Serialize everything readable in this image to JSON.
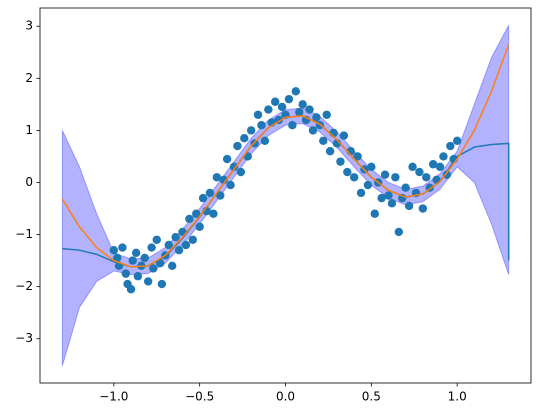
{
  "chart_data": {
    "type": "scatter",
    "xlim": [
      -1.43,
      1.43
    ],
    "ylim": [
      -3.85,
      3.35
    ],
    "xticks": [
      {
        "value": -1.0,
        "label": "−1.0"
      },
      {
        "value": -0.5,
        "label": "−0.5"
      },
      {
        "value": 0.0,
        "label": "0.0"
      },
      {
        "value": 0.5,
        "label": "0.5"
      },
      {
        "value": 1.0,
        "label": "1.0"
      }
    ],
    "yticks": [
      {
        "value": -3,
        "label": "−3"
      },
      {
        "value": -2,
        "label": "−2"
      },
      {
        "value": -1,
        "label": "−1"
      },
      0,
      1,
      2,
      3
    ],
    "band": {
      "color": "blue",
      "x": [
        -1.3,
        -1.2,
        -1.1,
        -1.0,
        -0.9,
        -0.8,
        -0.7,
        -0.6,
        -0.5,
        -0.4,
        -0.3,
        -0.2,
        -0.1,
        0.0,
        0.1,
        0.2,
        0.3,
        0.4,
        0.5,
        0.6,
        0.7,
        0.8,
        0.9,
        1.0,
        1.1,
        1.2,
        1.3
      ],
      "upper": [
        1.0,
        0.3,
        -0.6,
        -1.35,
        -1.47,
        -1.45,
        -1.25,
        -0.9,
        -0.5,
        -0.05,
        0.4,
        0.85,
        1.2,
        1.4,
        1.43,
        1.27,
        0.97,
        0.6,
        0.25,
        0.0,
        -0.13,
        -0.07,
        0.17,
        0.6,
        1.5,
        2.4,
        3.02
      ],
      "lower": [
        -3.52,
        -2.4,
        -1.9,
        -1.7,
        -1.77,
        -1.75,
        -1.55,
        -1.2,
        -0.8,
        -0.35,
        0.1,
        0.55,
        0.9,
        1.1,
        1.13,
        0.97,
        0.67,
        0.3,
        -0.05,
        -0.3,
        -0.43,
        -0.37,
        -0.13,
        0.3,
        0.0,
        -0.8,
        -1.77
      ]
    },
    "series": [
      {
        "type": "line",
        "color": "#1f77b4",
        "x": [
          -1.3,
          -1.2,
          -1.1,
          -1.0,
          -0.9,
          -0.8,
          -0.7,
          -0.6,
          -0.5,
          -0.4,
          -0.3,
          -0.2,
          -0.1,
          0.0,
          0.1,
          0.2,
          0.3,
          0.4,
          0.5,
          0.6,
          0.7,
          0.8,
          0.9,
          1.0,
          1.1,
          1.2,
          1.3,
          1.3
        ],
        "values": [
          -1.27,
          -1.3,
          -1.38,
          -1.52,
          -1.62,
          -1.6,
          -1.42,
          -1.07,
          -0.66,
          -0.2,
          0.25,
          0.7,
          1.05,
          1.25,
          1.28,
          1.12,
          0.82,
          0.45,
          0.1,
          -0.15,
          -0.28,
          -0.22,
          0.02,
          0.5,
          0.68,
          0.73,
          0.75,
          -1.5
        ]
      },
      {
        "type": "line",
        "color": "#ff7f0e",
        "x": [
          -1.3,
          -1.2,
          -1.1,
          -1.0,
          -0.9,
          -0.8,
          -0.7,
          -0.6,
          -0.5,
          -0.4,
          -0.3,
          -0.2,
          -0.1,
          0.0,
          0.1,
          0.2,
          0.3,
          0.4,
          0.5,
          0.6,
          0.7,
          0.8,
          0.9,
          1.0,
          1.1,
          1.2,
          1.3
        ],
        "values": [
          -0.32,
          -0.85,
          -1.25,
          -1.5,
          -1.62,
          -1.6,
          -1.4,
          -1.05,
          -0.65,
          -0.2,
          0.25,
          0.7,
          1.05,
          1.25,
          1.28,
          1.12,
          0.82,
          0.45,
          0.1,
          -0.15,
          -0.28,
          -0.22,
          0.02,
          0.45,
          1.0,
          1.75,
          2.65
        ]
      },
      {
        "type": "scatter",
        "color": "#1f77b4",
        "x": [
          -1.0,
          -0.98,
          -0.97,
          -0.95,
          -0.93,
          -0.92,
          -0.9,
          -0.89,
          -0.87,
          -0.86,
          -0.84,
          -0.82,
          -0.8,
          -0.78,
          -0.77,
          -0.75,
          -0.73,
          -0.72,
          -0.7,
          -0.68,
          -0.66,
          -0.64,
          -0.62,
          -0.6,
          -0.58,
          -0.56,
          -0.54,
          -0.52,
          -0.5,
          -0.48,
          -0.46,
          -0.44,
          -0.42,
          -0.4,
          -0.38,
          -0.36,
          -0.34,
          -0.32,
          -0.3,
          -0.28,
          -0.26,
          -0.24,
          -0.22,
          -0.2,
          -0.18,
          -0.16,
          -0.14,
          -0.12,
          -0.1,
          -0.08,
          -0.06,
          -0.04,
          -0.02,
          0.0,
          0.02,
          0.04,
          0.06,
          0.08,
          0.1,
          0.12,
          0.14,
          0.16,
          0.18,
          0.2,
          0.22,
          0.24,
          0.26,
          0.28,
          0.3,
          0.32,
          0.34,
          0.36,
          0.38,
          0.4,
          0.42,
          0.44,
          0.46,
          0.48,
          0.5,
          0.52,
          0.54,
          0.56,
          0.58,
          0.6,
          0.62,
          0.64,
          0.66,
          0.68,
          0.7,
          0.72,
          0.74,
          0.76,
          0.78,
          0.8,
          0.82,
          0.84,
          0.86,
          0.88,
          0.9,
          0.92,
          0.94,
          0.96,
          0.98,
          1.0
        ],
        "values": [
          -1.3,
          -1.45,
          -1.6,
          -1.25,
          -1.75,
          -1.95,
          -2.05,
          -1.5,
          -1.35,
          -1.8,
          -1.6,
          -1.45,
          -1.9,
          -1.25,
          -1.65,
          -1.1,
          -1.55,
          -1.95,
          -1.4,
          -1.2,
          -1.6,
          -1.05,
          -1.3,
          -0.95,
          -1.2,
          -0.7,
          -1.1,
          -0.6,
          -0.85,
          -0.3,
          -0.55,
          -0.2,
          -0.6,
          0.1,
          -0.25,
          0.05,
          0.45,
          -0.05,
          0.3,
          0.7,
          0.2,
          0.85,
          0.5,
          1.0,
          0.75,
          1.3,
          1.1,
          0.8,
          1.4,
          1.15,
          1.55,
          1.2,
          1.45,
          1.3,
          1.6,
          1.1,
          1.75,
          1.35,
          1.5,
          1.2,
          1.4,
          1.0,
          1.25,
          1.1,
          0.8,
          1.3,
          0.6,
          0.95,
          0.75,
          0.4,
          0.9,
          0.2,
          0.6,
          0.1,
          0.5,
          -0.2,
          0.25,
          -0.05,
          0.3,
          -0.6,
          0.0,
          -0.3,
          0.15,
          -0.25,
          -0.4,
          0.1,
          -0.95,
          -0.3,
          -0.1,
          -0.45,
          0.3,
          -0.2,
          0.2,
          -0.5,
          0.1,
          -0.1,
          0.35,
          0.05,
          0.3,
          0.5,
          0.15,
          0.7,
          0.45,
          0.8
        ]
      }
    ]
  }
}
